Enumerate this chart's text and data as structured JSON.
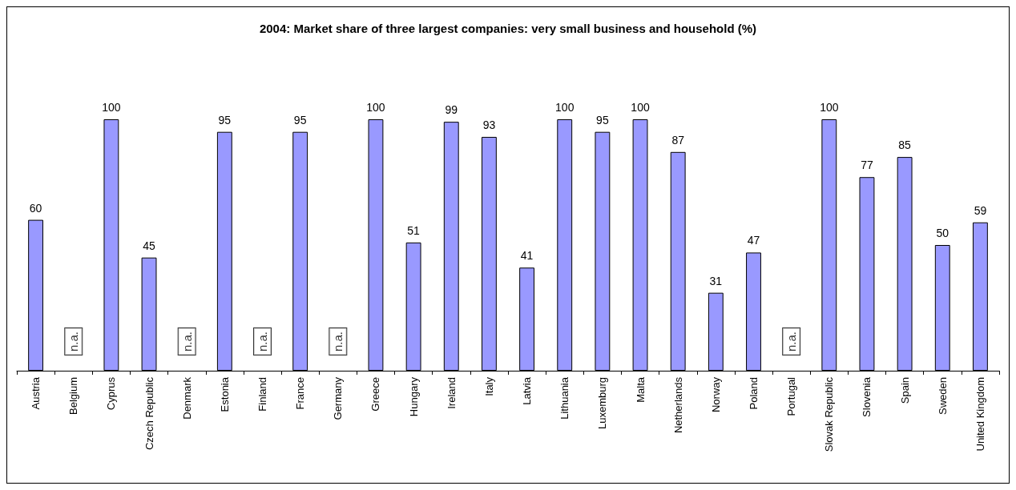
{
  "chart_data": {
    "type": "bar",
    "title": "2004: Market share of three largest companies: very small business and household (%)",
    "categories": [
      "Austria",
      "Belgium",
      "Cyprus",
      "Czech Republic",
      "Denmark",
      "Estonia",
      "Finland",
      "France",
      "Germany",
      "Greece",
      "Hungary",
      "Ireland",
      "Italy",
      "Latvia",
      "Lithuania",
      "Luxemburg",
      "Malta",
      "Netherlands",
      "Norway",
      "Poland",
      "Portugal",
      "Slovak Republic",
      "Slovenia",
      "Spain",
      "Sweden",
      "United Kingdom"
    ],
    "values": [
      60,
      null,
      100,
      45,
      null,
      95,
      null,
      95,
      null,
      100,
      51,
      99,
      93,
      41,
      100,
      95,
      100,
      87,
      31,
      47,
      null,
      100,
      77,
      85,
      50,
      59
    ],
    "value_labels": [
      "60",
      "n.a.",
      "100",
      "45",
      "n.a.",
      "95",
      "n.a.",
      "95",
      "n.a.",
      "100",
      "51",
      "99",
      "93",
      "41",
      "100",
      "95",
      "100",
      "87",
      "31",
      "47",
      "n.a.",
      "100",
      "77",
      "85",
      "50",
      "59"
    ],
    "color": "#9999ff"
  }
}
